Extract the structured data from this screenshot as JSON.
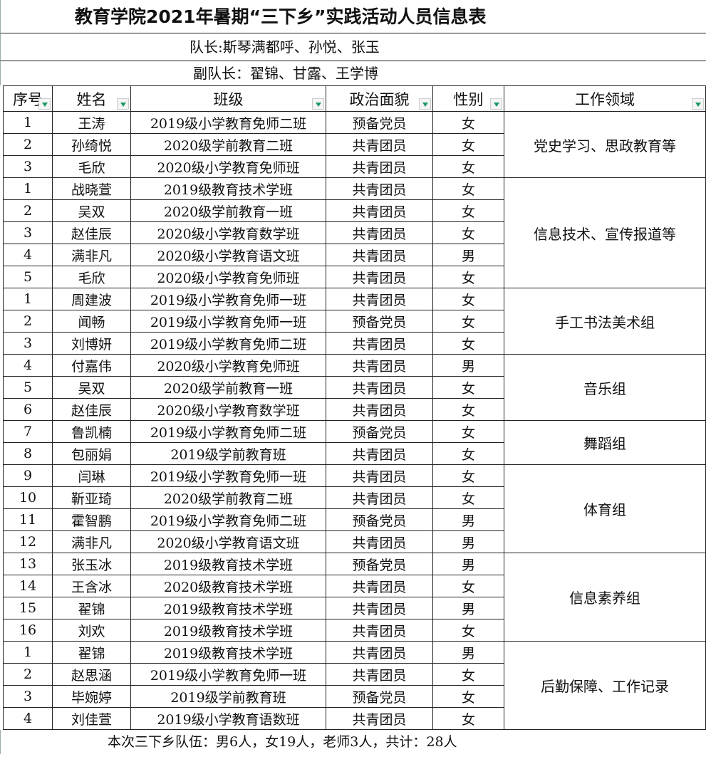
{
  "title": "教育学院2021年暑期“三下乡”实践活动人员信息表",
  "leader_line": "队长:斯琴满都呼、孙悦、张玉",
  "vice_leader_line": "副队长：翟锦、甘露、王学博",
  "headers": [
    "序号",
    "姓名",
    "班级",
    "政治面貌",
    "性别",
    "工作领域"
  ],
  "filter_icon": "dropdown-filter-icon",
  "accent_color": "#1a9a62",
  "groups": [
    {
      "area": "党史学习、思政教育等",
      "rows": [
        [
          "1",
          "王涛",
          "2019级小学教育免师二班",
          "预备党员",
          "女"
        ],
        [
          "2",
          "孙绮悦",
          "2020级学前教育二班",
          "共青团员",
          "女"
        ],
        [
          "3",
          "毛欣",
          "2020级小学教育免师班",
          "共青团员",
          "女"
        ]
      ]
    },
    {
      "area": "信息技术、宣传报道等",
      "rows": [
        [
          "1",
          "战晓萱",
          "2019级教育技术学班",
          "共青团员",
          "女"
        ],
        [
          "2",
          "吴双",
          "2020级学前教育一班",
          "共青团员",
          "女"
        ],
        [
          "3",
          "赵佳辰",
          "2020级小学教育数学班",
          "共青团员",
          "女"
        ],
        [
          "4",
          "满非凡",
          "2020级小学教育语文班",
          "共青团员",
          "男"
        ],
        [
          "5",
          "毛欣",
          "2020级小学教育免师班",
          "共青团员",
          "女"
        ]
      ]
    },
    {
      "area": "手工书法美术组",
      "rows": [
        [
          "1",
          "周建波",
          "2019级小学教育免师一班",
          "共青团员",
          "女"
        ],
        [
          "2",
          "闻畅",
          "2019级小学教育免师一班",
          "预备党员",
          "女"
        ],
        [
          "3",
          "刘博妍",
          "2019级小学教育免师二班",
          "共青团员",
          "女"
        ]
      ]
    },
    {
      "area": "音乐组",
      "rows": [
        [
          "4",
          "付嘉伟",
          "2020级小学教育免师班",
          "共青团员",
          "男"
        ],
        [
          "5",
          "吴双",
          "2020级学前教育一班",
          "共青团员",
          "女"
        ],
        [
          "6",
          "赵佳辰",
          "2020级小学教育数学班",
          "共青团员",
          "女"
        ]
      ]
    },
    {
      "area": "舞蹈组",
      "rows": [
        [
          "7",
          "鲁凯楠",
          "2019级小学教育免师二班",
          "预备党员",
          "女"
        ],
        [
          "8",
          "包丽娟",
          "2019级学前教育班",
          "共青团员",
          "女"
        ]
      ]
    },
    {
      "area": "体育组",
      "rows": [
        [
          "9",
          "闫琳",
          "2019级小学教育免师一班",
          "共青团员",
          "女"
        ],
        [
          "10",
          "靳亚琦",
          "2020级学前教育二班",
          "共青团员",
          "女"
        ],
        [
          "11",
          "霍智鹏",
          "2019级小学教育免师二班",
          "预备党员",
          "男"
        ],
        [
          "12",
          "满非凡",
          "2020级小学教育语文班",
          "共青团员",
          "男"
        ]
      ]
    },
    {
      "area": "信息素养组",
      "rows": [
        [
          "13",
          "张玉冰",
          "2019级教育技术学班",
          "预备党员",
          "男"
        ],
        [
          "14",
          "王含冰",
          "2020级教育技术学班",
          "共青团员",
          "女"
        ],
        [
          "15",
          "翟锦",
          "2019级教育技术学班",
          "共青团员",
          "男"
        ],
        [
          "16",
          "刘欢",
          "2019级教育技术学班",
          "共青团员",
          "女"
        ]
      ]
    },
    {
      "area": "后勤保障、工作记录",
      "rows": [
        [
          "1",
          "翟锦",
          "2019级教育技术学班",
          "共青团员",
          "男"
        ],
        [
          "2",
          "赵思涵",
          "2019级小学教育免师一班",
          "共青团员",
          "女"
        ],
        [
          "3",
          "毕婉婷",
          "2019级学前教育班",
          "预备党员",
          "女"
        ],
        [
          "4",
          "刘佳萱",
          "2019级小学教育语数班",
          "共青团员",
          "女"
        ]
      ]
    }
  ],
  "footer": "本次三下乡队伍：男6人，女19人，老师3人，共计：28人"
}
